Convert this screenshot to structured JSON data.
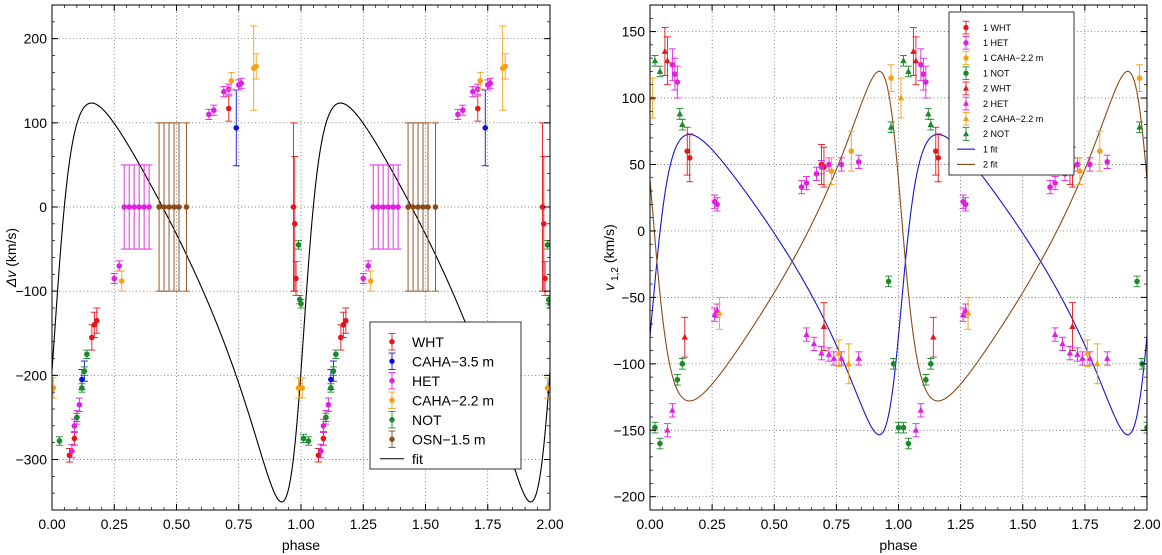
{
  "chart_data": [
    {
      "type": "scatter",
      "xlabel": "phase",
      "ylabel_main": "Δv",
      "ylabel_unit": " (km/s)",
      "ylabel_sub": "",
      "xlim": [
        0,
        2
      ],
      "ylim": [
        -360,
        240
      ],
      "xticks": [
        0,
        0.25,
        0.5,
        0.75,
        1.0,
        1.25,
        1.5,
        1.75,
        2.0
      ],
      "xtick_labels": [
        "0.00",
        "0.25",
        "0.50",
        "0.75",
        "1.00",
        "1.25",
        "1.50",
        "1.75",
        "2.00"
      ],
      "yticks": [
        -300,
        -200,
        -100,
        0,
        100,
        200
      ],
      "ytick_labels": [
        "−300",
        "−200",
        "−100",
        "0",
        "100",
        "200"
      ],
      "grid": true,
      "legend_position": "bottom-right",
      "legend": [
        {
          "label": "WHT",
          "color": "#e8141c",
          "marker": "circle"
        },
        {
          "label": "CAHA−3.5 m",
          "color": "#1010d8",
          "marker": "circle"
        },
        {
          "label": "HET",
          "color": "#e020e0",
          "marker": "circle"
        },
        {
          "label": "CAHA−2.2 m",
          "color": "#f5a015",
          "marker": "circle"
        },
        {
          "label": "NOT",
          "color": "#1a8a2a",
          "marker": "circle"
        },
        {
          "label": "OSN−1.5 m",
          "color": "#8b4a17",
          "marker": "circle"
        },
        {
          "label": "fit",
          "color": "#000000",
          "marker": "line"
        }
      ],
      "fit": {
        "name": "fit",
        "color": "#000000",
        "K": 237,
        "offset": -77,
        "e": 0.45,
        "w_deg": 250,
        "phase0": 0.0
      },
      "series": [
        {
          "name": "WHT",
          "color": "#e8141c",
          "points": [
            [
              0.07,
              -295,
              8
            ],
            [
              0.09,
              -275,
              8
            ],
            [
              0.16,
              -155,
              15
            ],
            [
              0.17,
              -140,
              15
            ],
            [
              0.18,
              -135,
              15
            ],
            [
              0.71,
              117,
              15
            ],
            [
              0.97,
              0,
              100
            ],
            [
              0.975,
              -20,
              80
            ],
            [
              0.98,
              -85,
              20
            ]
          ]
        },
        {
          "name": "CAHA−3.5 m",
          "color": "#1010d8",
          "points": [
            [
              0.12,
              -205,
              12
            ],
            [
              0.13,
              -195,
              12
            ],
            [
              0.74,
              94,
              45
            ]
          ]
        },
        {
          "name": "HET",
          "color": "#e020e0",
          "points": [
            [
              0.08,
              -290,
              8
            ],
            [
              0.09,
              -260,
              8
            ],
            [
              0.1,
              -250,
              8
            ],
            [
              0.11,
              -235,
              8
            ],
            [
              0.25,
              -85,
              6
            ],
            [
              0.27,
              -70,
              6
            ],
            [
              0.29,
              0,
              50
            ],
            [
              0.31,
              0,
              50
            ],
            [
              0.33,
              0,
              50
            ],
            [
              0.35,
              0,
              50
            ],
            [
              0.37,
              0,
              50
            ],
            [
              0.39,
              0,
              50
            ],
            [
              0.63,
              110,
              6
            ],
            [
              0.65,
              115,
              6
            ],
            [
              0.69,
              137,
              6
            ],
            [
              0.71,
              140,
              6
            ],
            [
              0.75,
              145,
              6
            ],
            [
              0.76,
              147,
              6
            ]
          ]
        },
        {
          "name": "CAHA−2.2 m",
          "color": "#f5a015",
          "points": [
            [
              0.005,
              -215,
              12
            ],
            [
              0.28,
              -88,
              12
            ],
            [
              0.72,
              150,
              10
            ],
            [
              0.81,
              165,
              50
            ],
            [
              0.82,
              167,
              15
            ],
            [
              0.99,
              -215,
              12
            ]
          ]
        },
        {
          "name": "NOT",
          "color": "#1a8a2a",
          "points": [
            [
              0.03,
              -278,
              5
            ],
            [
              0.1,
              -250,
              5
            ],
            [
              0.12,
              -215,
              5
            ],
            [
              0.13,
              -195,
              5
            ],
            [
              0.14,
              -175,
              5
            ],
            [
              0.99,
              -45,
              5
            ],
            [
              0.995,
              -110,
              5
            ],
            [
              1.0,
              -115,
              5
            ],
            [
              1.01,
              -275,
              5
            ]
          ]
        },
        {
          "name": "OSN−1.5 m",
          "color": "#8b4a17",
          "points": [
            [
              0.43,
              0,
              100
            ],
            [
              0.45,
              0,
              100
            ],
            [
              0.47,
              0,
              100
            ],
            [
              0.49,
              0,
              100
            ],
            [
              0.51,
              0,
              100
            ],
            [
              0.54,
              0,
              100
            ]
          ]
        }
      ]
    },
    {
      "type": "scatter",
      "xlabel": "phase",
      "ylabel_main": "v",
      "ylabel_unit": " (km/s)",
      "ylabel_sub": "1,2",
      "xlim": [
        0,
        2
      ],
      "ylim": [
        -210,
        170
      ],
      "xticks": [
        0,
        0.25,
        0.5,
        0.75,
        1.0,
        1.25,
        1.5,
        1.75,
        2.0
      ],
      "xtick_labels": [
        "0.00",
        "0.25",
        "0.50",
        "0.75",
        "1.00",
        "1.25",
        "1.50",
        "1.75",
        "2.00"
      ],
      "yticks": [
        -200,
        -150,
        -100,
        -50,
        0,
        50,
        100,
        150
      ],
      "ytick_labels": [
        "−200",
        "−150",
        "−100",
        "−50",
        "0",
        "50",
        "100",
        "150"
      ],
      "grid": true,
      "legend_position": "top-center",
      "legend": [
        {
          "label": "1 WHT",
          "color": "#e8141c",
          "marker": "circle"
        },
        {
          "label": "1 HET",
          "color": "#e020e0",
          "marker": "circle"
        },
        {
          "label": "1 CAHA−2.2 m",
          "color": "#f5a015",
          "marker": "circle"
        },
        {
          "label": "1 NOT",
          "color": "#1a8a2a",
          "marker": "circle"
        },
        {
          "label": "2 WHT",
          "color": "#e8141c",
          "marker": "triangle"
        },
        {
          "label": "2 HET",
          "color": "#e020e0",
          "marker": "triangle"
        },
        {
          "label": "2 CAHA−2.2 m",
          "color": "#f5a015",
          "marker": "triangle"
        },
        {
          "label": "2 NOT",
          "color": "#1a8a2a",
          "marker": "triangle"
        },
        {
          "label": "1 fit",
          "color": "#1515d0",
          "marker": "line"
        },
        {
          "label": "2 fit",
          "color": "#8b4a17",
          "marker": "line"
        }
      ],
      "fit": [
        {
          "name": "1 fit",
          "color": "#1515d0",
          "K": 113,
          "offset": -23,
          "e": 0.45,
          "w_deg": 250,
          "phase0": 0.0
        },
        {
          "name": "2 fit",
          "color": "#8b4a17",
          "K": -124,
          "offset": -23,
          "e": 0.45,
          "w_deg": 250,
          "phase0": 0.0
        }
      ],
      "series": [
        {
          "name": "1 WHT",
          "color": "#e8141c",
          "marker": "circle",
          "points": [
            [
              0.15,
              60,
              18
            ],
            [
              0.16,
              55,
              18
            ],
            [
              0.69,
              50,
              15
            ],
            [
              0.7,
              48,
              15
            ]
          ]
        },
        {
          "name": "1 HET",
          "color": "#e020e0",
          "marker": "circle",
          "points": [
            [
              0.09,
              125,
              12
            ],
            [
              0.1,
              118,
              12
            ],
            [
              0.11,
              112,
              12
            ],
            [
              0.26,
              22,
              5
            ],
            [
              0.27,
              20,
              5
            ],
            [
              0.61,
              33,
              5
            ],
            [
              0.63,
              36,
              5
            ],
            [
              0.67,
              43,
              5
            ],
            [
              0.69,
              48,
              5
            ],
            [
              0.72,
              50,
              5
            ],
            [
              0.77,
              50,
              5
            ],
            [
              0.84,
              52,
              5
            ]
          ]
        },
        {
          "name": "1 CAHA−2.2 m",
          "color": "#f5a015",
          "marker": "circle",
          "points": [
            [
              0.73,
              45,
              10
            ],
            [
              0.81,
              60,
              15
            ],
            [
              0.97,
              115,
              10
            ]
          ]
        },
        {
          "name": "1 NOT",
          "color": "#1a8a2a",
          "marker": "circle",
          "points": [
            [
              0.02,
              -148,
              4
            ],
            [
              0.04,
              -160,
              4
            ],
            [
              0.11,
              -112,
              4
            ],
            [
              0.13,
              -100,
              4
            ],
            [
              0.96,
              -38,
              4
            ],
            [
              0.98,
              -100,
              4
            ],
            [
              1.0,
              -148,
              4
            ]
          ]
        },
        {
          "name": "2 WHT",
          "color": "#e8141c",
          "marker": "triangle",
          "points": [
            [
              0.06,
              135,
              18
            ],
            [
              0.07,
              128,
              18
            ],
            [
              0.14,
              -80,
              15
            ],
            [
              0.7,
              -72,
              18
            ]
          ]
        },
        {
          "name": "2 HET",
          "color": "#e020e0",
          "marker": "triangle",
          "points": [
            [
              0.07,
              -150,
              5
            ],
            [
              0.09,
              -135,
              5
            ],
            [
              0.26,
              -63,
              5
            ],
            [
              0.27,
              -60,
              5
            ],
            [
              0.63,
              -78,
              5
            ],
            [
              0.66,
              -85,
              5
            ],
            [
              0.69,
              -92,
              5
            ],
            [
              0.72,
              -93,
              5
            ],
            [
              0.74,
              -96,
              5
            ],
            [
              0.77,
              -96,
              5
            ],
            [
              0.84,
              -96,
              5
            ]
          ]
        },
        {
          "name": "2 CAHA−2.2 m",
          "color": "#f5a015",
          "marker": "triangle",
          "points": [
            [
              0.01,
              100,
              15
            ],
            [
              0.28,
              -62,
              12
            ],
            [
              0.76,
              -92,
              10
            ],
            [
              0.8,
              -100,
              15
            ]
          ]
        },
        {
          "name": "2 NOT",
          "color": "#1a8a2a",
          "marker": "triangle",
          "points": [
            [
              0.02,
              128,
              4
            ],
            [
              0.04,
              120,
              4
            ],
            [
              0.12,
              88,
              4
            ],
            [
              0.13,
              80,
              4
            ],
            [
              0.97,
              78,
              4
            ]
          ]
        }
      ]
    }
  ]
}
